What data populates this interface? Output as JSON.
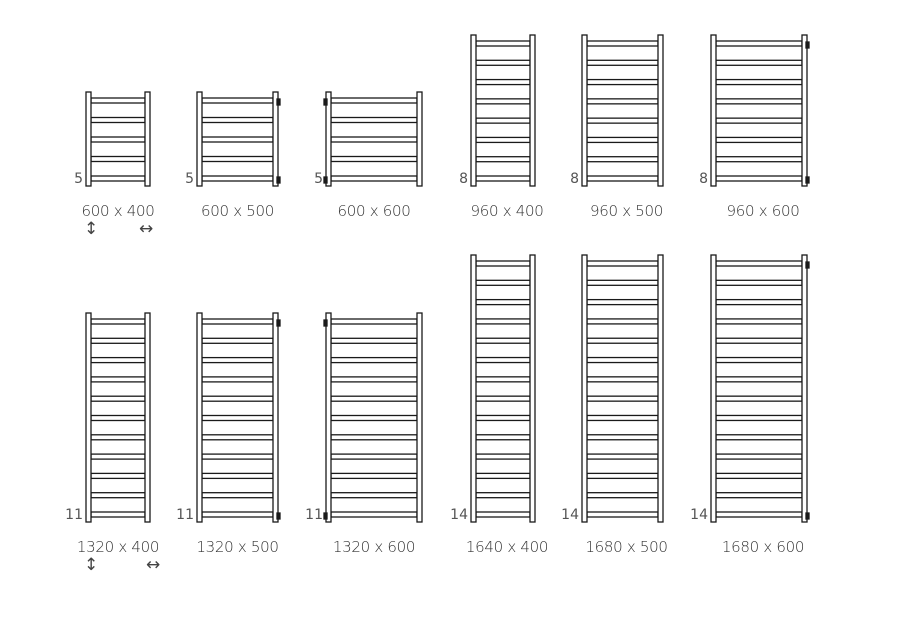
{
  "radiators": [
    {
      "size": "600 x 400",
      "rails": 5,
      "connector": "none"
    },
    {
      "size": "600 x 500",
      "rails": 5,
      "connector": "right"
    },
    {
      "size": "600 x 600",
      "rails": 5,
      "connector": "left"
    },
    {
      "size": "960 x 400",
      "rails": 8,
      "connector": "none"
    },
    {
      "size": "960 x 500",
      "rails": 8,
      "connector": "none"
    },
    {
      "size": "960 x 600",
      "rails": 8,
      "connector": "right"
    },
    {
      "size": "1320 x 400",
      "rails": 11,
      "connector": "none"
    },
    {
      "size": "1320 x 500",
      "rails": 11,
      "connector": "right"
    },
    {
      "size": "1320 x 600",
      "rails": 11,
      "connector": "left"
    },
    {
      "size": "1640 x 400",
      "rails": 14,
      "connector": "none"
    },
    {
      "size": "1680 x 500",
      "rails": 14,
      "connector": "none"
    },
    {
      "size": "1680 x 600",
      "rails": 14,
      "connector": "right"
    }
  ],
  "height_arrow_icon": "↕",
  "width_arrow_icon": "↔",
  "line_color": "#1a1a1a"
}
